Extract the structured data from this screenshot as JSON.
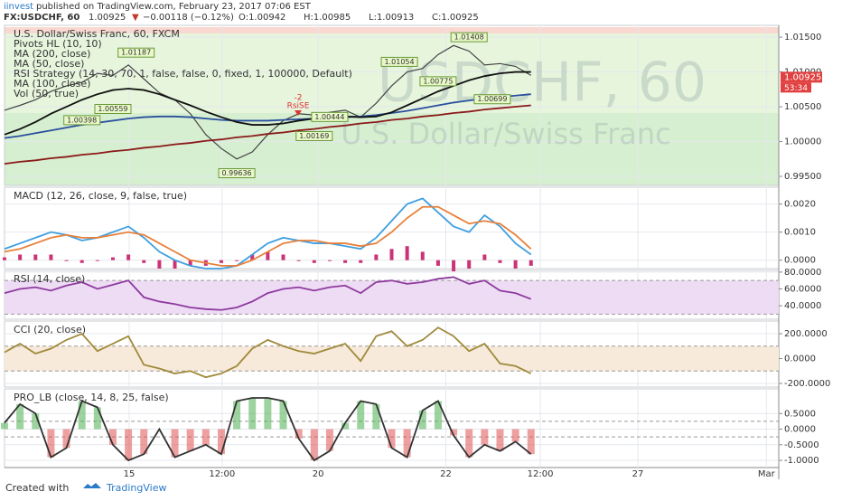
{
  "header": {
    "author": "iinvest",
    "published": "published on TradingView.com, February 23, 2017 07:06 EST",
    "symbol": "FX:USDCHF, 60",
    "last": "1.00925",
    "arrow": "▼",
    "change": "−0.00118 (−0.12%)",
    "ohlc": [
      "O:1.00942",
      "H:1.00985",
      "L:1.00913",
      "C:1.00925"
    ]
  },
  "footer": {
    "created": "Created with",
    "brand": "TradingView"
  },
  "chart_data": [
    {
      "type": "line",
      "title": "U.S. Dollar/Swiss Franc, 60, FXCM",
      "legend": [
        "Pivots HL (10, 10)",
        "MA (200, close)",
        "MA (50, close)",
        "RSI Strategy (14, 30, 70, 1, false, false, 0, fixed, 1, 100000, Default)",
        "MA (100, close)",
        "Vol (50, true)"
      ],
      "watermark": "USDCHF, 60",
      "watermark_sub": "U.S. Dollar/Swiss Franc",
      "signal_qty": "-2",
      "signal_label": "RsiSE",
      "x": [
        0,
        2,
        4,
        6,
        8,
        10,
        12,
        14,
        16,
        18,
        20,
        22,
        24,
        26,
        28,
        30,
        32,
        34,
        36,
        38,
        40,
        42,
        44,
        46,
        48,
        50,
        52,
        54,
        56,
        58,
        60,
        62,
        64,
        66,
        68
      ],
      "xlim": [
        0,
        100
      ],
      "ylim": [
        0.9937,
        1.0167
      ],
      "yticks": [
        {
          "value": 1.015,
          "label": "1.01500"
        },
        {
          "value": 1.01,
          "label": "1.01000"
        },
        {
          "value": 1.005,
          "label": "1.00500"
        },
        {
          "value": 1,
          "label": "1.00000"
        },
        {
          "value": 0.995,
          "label": "0.99500"
        }
      ],
      "series": [
        {
          "name": "Close",
          "color": "#444444",
          "values": [
            1.0045,
            1.0052,
            1.006,
            1.0072,
            1.008,
            1.0085,
            1.0098,
            1.0095,
            1.011,
            1.009,
            1.007,
            1.006,
            1.004,
            1.001,
            0.999,
            0.9975,
            0.9985,
            1.001,
            1.003,
            1.004,
            1.0038,
            1.0042,
            1.0045,
            1.0035,
            1.0055,
            1.008,
            1.01,
            1.0105,
            1.0125,
            1.0138,
            1.013,
            1.011,
            1.0112,
            1.0108,
            1.0095
          ]
        },
        {
          "name": "MA (200, close)",
          "color": "#8b1a1a",
          "values": [
            0.9968,
            0.9971,
            0.9973,
            0.9976,
            0.9978,
            0.9981,
            0.9983,
            0.9986,
            0.9988,
            0.9991,
            0.9993,
            0.9996,
            0.9998,
            1.0001,
            1.0003,
            1.0006,
            1.0008,
            1.0011,
            1.0013,
            1.0016,
            1.0018,
            1.0021,
            1.0023,
            1.0026,
            1.0028,
            1.0031,
            1.0033,
            1.0036,
            1.0038,
            1.0041,
            1.0043,
            1.0046,
            1.0048,
            1.005,
            1.0052
          ]
        },
        {
          "name": "MA (100, close)",
          "color": "#2b4f9e",
          "values": [
            1.0005,
            1.0008,
            1.0012,
            1.0016,
            1.002,
            1.0024,
            1.0027,
            1.003,
            1.0033,
            1.0035,
            1.0036,
            1.0036,
            1.0035,
            1.0033,
            1.0031,
            1.003,
            1.003,
            1.003,
            1.0031,
            1.0032,
            1.0033,
            1.0034,
            1.0035,
            1.0036,
            1.0038,
            1.0041,
            1.0044,
            1.0048,
            1.0052,
            1.0056,
            1.0059,
            1.0062,
            1.0064,
            1.0066,
            1.0068
          ]
        },
        {
          "name": "MA (50, close)",
          "color": "#111111",
          "values": [
            1.001,
            1.0018,
            1.0028,
            1.004,
            1.005,
            1.006,
            1.0068,
            1.0074,
            1.0076,
            1.0074,
            1.0068,
            1.006,
            1.0052,
            1.0043,
            1.0035,
            1.0028,
            1.0024,
            1.0024,
            1.0026,
            1.003,
            1.0033,
            1.0036,
            1.0036,
            1.0035,
            1.0036,
            1.0042,
            1.0052,
            1.0062,
            1.0072,
            1.008,
            1.0088,
            1.0094,
            1.0098,
            1.01,
            1.01
          ]
        }
      ],
      "pivots": [
        {
          "x": 17,
          "value": 1.01187
        },
        {
          "x": 51,
          "value": 1.01054
        },
        {
          "x": 60,
          "value": 1.01408
        },
        {
          "x": 56,
          "value": 1.00775
        },
        {
          "x": 63,
          "value": 1.00699
        },
        {
          "x": 42,
          "value": 1.00444
        },
        {
          "x": 40,
          "value": 1.00169
        },
        {
          "x": 14,
          "value": 1.00559
        },
        {
          "x": 10,
          "value": 1.00398
        },
        {
          "x": 30,
          "value": 0.99636
        }
      ],
      "last_price": {
        "value": 1.00925,
        "label": "1.00925"
      },
      "countdown": "53:34"
    },
    {
      "type": "line",
      "title": "MACD (12, 26, close, 9, false, true)",
      "x": [
        0,
        2,
        4,
        6,
        8,
        10,
        12,
        14,
        16,
        18,
        20,
        22,
        24,
        26,
        28,
        30,
        32,
        34,
        36,
        38,
        40,
        42,
        44,
        46,
        48,
        50,
        52,
        54,
        56,
        58,
        60,
        62,
        64,
        66,
        68
      ],
      "xlim": [
        0,
        100
      ],
      "ylim": [
        -0.0003,
        0.0026
      ],
      "yticks": [
        {
          "value": 0.002,
          "label": "0.0020"
        },
        {
          "value": 0.001,
          "label": "0.0010"
        },
        {
          "value": 0,
          "label": "0.0000"
        }
      ],
      "series": [
        {
          "name": "MACD",
          "color": "#3f9fe0",
          "values": [
            0.0004,
            0.0006,
            0.0008,
            0.001,
            0.0009,
            0.0007,
            0.0008,
            0.001,
            0.0012,
            0.0008,
            0.0003,
            0,
            -0.0002,
            -0.0003,
            -0.0003,
            -0.0002,
            0.0002,
            0.0006,
            0.0008,
            0.0007,
            0.0006,
            0.0006,
            0.0005,
            0.0004,
            0.0008,
            0.0014,
            0.002,
            0.0022,
            0.0017,
            0.0012,
            0.001,
            0.0016,
            0.0012,
            0.0006,
            0.0002
          ]
        },
        {
          "name": "Signal",
          "color": "#e8803a",
          "values": [
            0.0003,
            0.0004,
            0.0006,
            0.0008,
            0.0009,
            0.0008,
            0.0008,
            0.0009,
            0.001,
            0.0009,
            0.0006,
            0.0003,
            0,
            -0.0001,
            -0.0002,
            -0.0002,
            0,
            0.0003,
            0.0006,
            0.0007,
            0.0007,
            0.0006,
            0.0006,
            0.0005,
            0.0006,
            0.001,
            0.0015,
            0.0019,
            0.0019,
            0.0016,
            0.0013,
            0.0014,
            0.0013,
            0.0009,
            0.0004
          ]
        }
      ],
      "histogram": {
        "color": "#cc3377",
        "values": [
          0.0001,
          0.0002,
          0.0002,
          0.0002,
          0,
          -0.0001,
          0,
          0.0001,
          0.0002,
          -0.0001,
          -0.0003,
          -0.0003,
          -0.0002,
          -0.0002,
          -0.0001,
          0,
          0.0002,
          0.0003,
          0.0002,
          0,
          -0.0001,
          0,
          -0.0001,
          -0.0001,
          0.0002,
          0.0004,
          0.0005,
          0.0003,
          -0.0002,
          -0.0004,
          -0.0003,
          0.0002,
          -0.0001,
          -0.0003,
          -0.0002
        ]
      }
    },
    {
      "type": "line",
      "title": "RSI (14, close)",
      "x": [
        0,
        2,
        4,
        6,
        8,
        10,
        12,
        14,
        16,
        18,
        20,
        22,
        24,
        26,
        28,
        30,
        32,
        34,
        36,
        38,
        40,
        42,
        44,
        46,
        48,
        50,
        52,
        54,
        56,
        58,
        60,
        62,
        64,
        66,
        68
      ],
      "xlim": [
        0,
        100
      ],
      "ylim": [
        24,
        82
      ],
      "band": [
        30,
        70
      ],
      "band_color": "#eedcf5",
      "yticks": [
        {
          "value": 80,
          "label": "80.0000"
        },
        {
          "value": 60,
          "label": "60.0000"
        },
        {
          "value": 40,
          "label": "40.0000"
        }
      ],
      "series": [
        {
          "name": "RSI",
          "color": "#8e3a9e",
          "values": [
            55,
            60,
            62,
            58,
            64,
            68,
            60,
            65,
            70,
            50,
            45,
            42,
            38,
            36,
            35,
            38,
            45,
            55,
            60,
            62,
            58,
            62,
            64,
            55,
            68,
            70,
            66,
            68,
            72,
            74,
            66,
            70,
            58,
            55,
            48
          ]
        }
      ]
    },
    {
      "type": "line",
      "title": "CCI (20, close)",
      "x": [
        0,
        2,
        4,
        6,
        8,
        10,
        12,
        14,
        16,
        18,
        20,
        22,
        24,
        26,
        28,
        30,
        32,
        34,
        36,
        38,
        40,
        42,
        44,
        46,
        48,
        50,
        52,
        54,
        56,
        58,
        60,
        62,
        64,
        66,
        68
      ],
      "xlim": [
        0,
        100
      ],
      "ylim": [
        -229,
        302
      ],
      "band": [
        -100,
        100
      ],
      "band_color": "#f7eadb",
      "yticks": [
        {
          "value": 200,
          "label": "200.0000"
        },
        {
          "value": 0,
          "label": "0.0000"
        },
        {
          "value": -200,
          "label": "-200.0000"
        }
      ],
      "series": [
        {
          "name": "CCI",
          "color": "#a08a3a",
          "values": [
            50,
            120,
            40,
            80,
            150,
            200,
            60,
            120,
            180,
            -50,
            -80,
            -120,
            -100,
            -150,
            -120,
            -60,
            80,
            150,
            100,
            60,
            40,
            80,
            120,
            -20,
            180,
            220,
            100,
            150,
            250,
            180,
            60,
            120,
            -40,
            -60,
            -120
          ]
        }
      ]
    },
    {
      "type": "line",
      "title": "PRO_LB (close, 14, 8, 25, false)",
      "x": [
        0,
        2,
        4,
        6,
        8,
        10,
        12,
        14,
        16,
        18,
        20,
        22,
        24,
        26,
        28,
        30,
        32,
        34,
        36,
        38,
        40,
        42,
        44,
        46,
        48,
        50,
        52,
        54,
        56,
        58,
        60,
        62,
        64,
        66,
        68
      ],
      "xlim": [
        0,
        100
      ],
      "ylim": [
        -1.23,
        1.29
      ],
      "band": [
        -0.25,
        0.25
      ],
      "yticks": [
        {
          "value": 0.5,
          "label": "0.5000"
        },
        {
          "value": 0,
          "label": "0.0000"
        },
        {
          "value": -0.5,
          "label": "-0.5000"
        },
        {
          "value": -1,
          "label": "-1.0000"
        }
      ],
      "xticks": [
        {
          "value": 16.1,
          "label": "15"
        },
        {
          "value": 28.1,
          "label": "12:00"
        },
        {
          "value": 40.5,
          "label": "20"
        },
        {
          "value": 57,
          "label": "22"
        },
        {
          "value": 69.2,
          "label": "12:00"
        },
        {
          "value": 81.8,
          "label": "27"
        },
        {
          "value": 98.4,
          "label": "Mar"
        }
      ],
      "fill_colors": [
        "#4caf50",
        "#e05050"
      ],
      "series": [
        {
          "name": "PRO_LB",
          "color": "#333333",
          "values": [
            0.2,
            0.8,
            0.5,
            -0.9,
            -0.6,
            0.9,
            0.7,
            -0.5,
            -1,
            -0.8,
            0,
            -0.9,
            -0.7,
            -0.5,
            -0.8,
            0.9,
            1,
            1,
            0.9,
            -0.3,
            -1,
            -0.7,
            0.2,
            0.9,
            0.8,
            -0.6,
            -0.9,
            0.6,
            0.9,
            -0.2,
            -0.9,
            -0.5,
            -0.7,
            -0.4,
            -0.8
          ]
        }
      ]
    }
  ]
}
